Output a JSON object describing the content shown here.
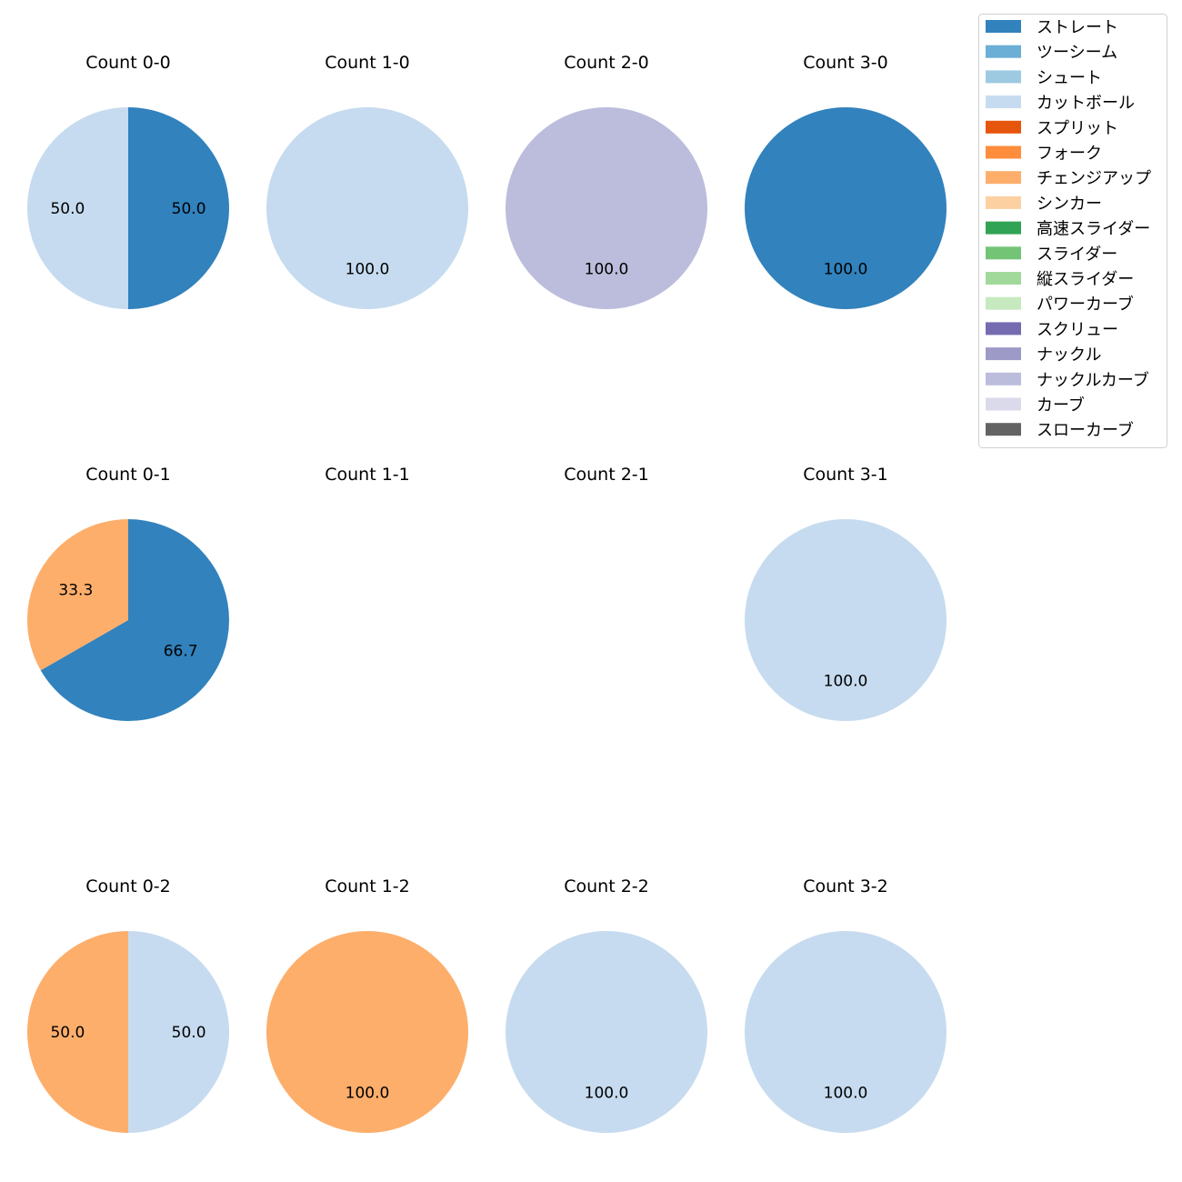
{
  "chart_data": {
    "type": "pie",
    "start_angle_deg": 90,
    "direction": "clockwise",
    "value_format": "percent, 1 decimal",
    "legend": {
      "placement": "top-right",
      "entries": [
        {
          "name": "ストレート",
          "color": "#3182bd"
        },
        {
          "name": "ツーシーム",
          "color": "#6baed6"
        },
        {
          "name": "シュート",
          "color": "#9ecae1"
        },
        {
          "name": "カットボール",
          "color": "#c6dbef"
        },
        {
          "name": "スプリット",
          "color": "#e6550d"
        },
        {
          "name": "フォーク",
          "color": "#fd8d3c"
        },
        {
          "name": "チェンジアップ",
          "color": "#fdae6b"
        },
        {
          "name": "シンカー",
          "color": "#fdd0a2"
        },
        {
          "name": "高速スライダー",
          "color": "#31a354"
        },
        {
          "name": "スライダー",
          "color": "#74c476"
        },
        {
          "name": "縦スライダー",
          "color": "#a1d99b"
        },
        {
          "name": "パワーカーブ",
          "color": "#c7e9c0"
        },
        {
          "name": "スクリュー",
          "color": "#756bb1"
        },
        {
          "name": "ナックル",
          "color": "#9e9ac8"
        },
        {
          "name": "ナックルカーブ",
          "color": "#bcbddc"
        },
        {
          "name": "カーブ",
          "color": "#dadaeb"
        },
        {
          "name": "スローカーブ",
          "color": "#636363"
        }
      ]
    },
    "pies": [
      {
        "title": "Count 0-0",
        "slices": [
          {
            "name": "ストレート",
            "value": 50.0
          },
          {
            "name": "カットボール",
            "value": 50.0
          }
        ]
      },
      {
        "title": "Count 1-0",
        "slices": [
          {
            "name": "カットボール",
            "value": 100.0
          }
        ]
      },
      {
        "title": "Count 2-0",
        "slices": [
          {
            "name": "ナックルカーブ",
            "value": 100.0
          }
        ]
      },
      {
        "title": "Count 3-0",
        "slices": [
          {
            "name": "ストレート",
            "value": 100.0
          }
        ]
      },
      {
        "title": "Count 0-1",
        "slices": [
          {
            "name": "ストレート",
            "value": 66.7
          },
          {
            "name": "チェンジアップ",
            "value": 33.3
          }
        ]
      },
      {
        "title": "Count 1-1",
        "slices": []
      },
      {
        "title": "Count 2-1",
        "slices": []
      },
      {
        "title": "Count 3-1",
        "slices": [
          {
            "name": "カットボール",
            "value": 100.0
          }
        ]
      },
      {
        "title": "Count 0-2",
        "slices": [
          {
            "name": "カットボール",
            "value": 50.0
          },
          {
            "name": "チェンジアップ",
            "value": 50.0
          }
        ]
      },
      {
        "title": "Count 1-2",
        "slices": [
          {
            "name": "チェンジアップ",
            "value": 100.0
          }
        ]
      },
      {
        "title": "Count 2-2",
        "slices": [
          {
            "name": "カットボール",
            "value": 100.0
          }
        ]
      },
      {
        "title": "Count 3-2",
        "slices": [
          {
            "name": "カットボール",
            "value": 100.0
          }
        ]
      }
    ]
  }
}
